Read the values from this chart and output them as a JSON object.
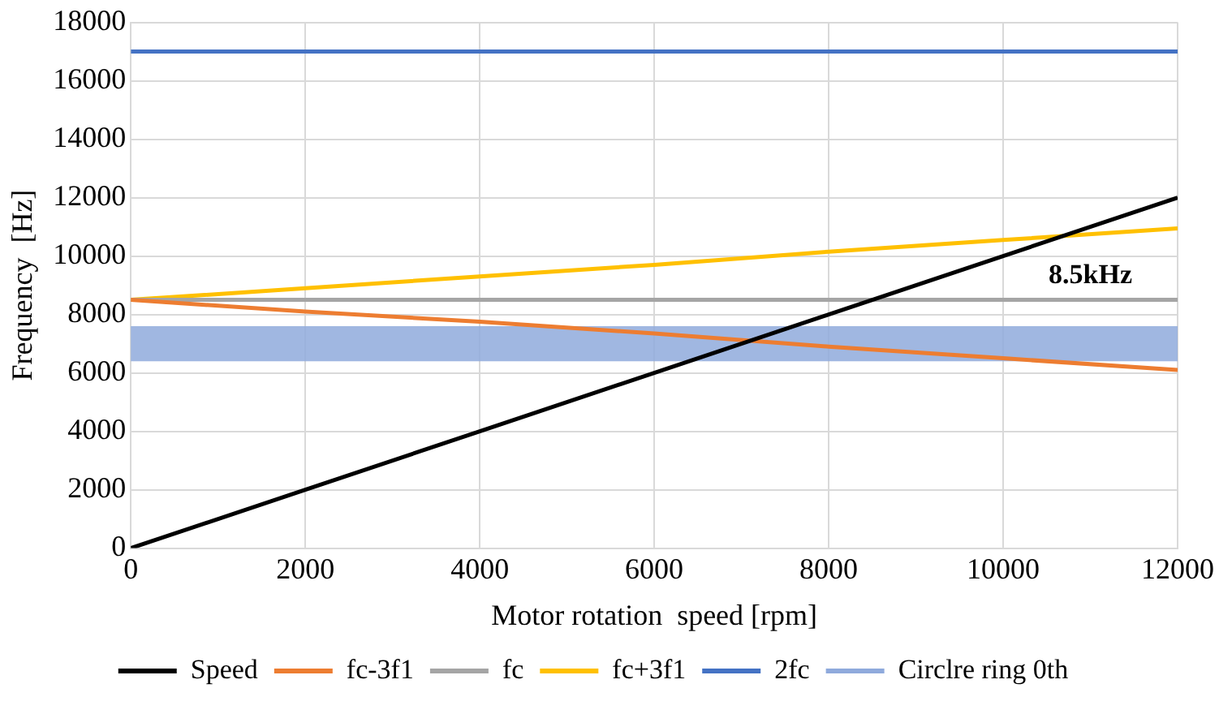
{
  "chart_data": {
    "type": "line",
    "xlabel": "Motor rotation  speed [rpm]",
    "ylabel": "Frequency  [Hz]",
    "x": [
      0,
      2000,
      4000,
      6000,
      8000,
      10000,
      12000
    ],
    "series": [
      {
        "name": "Speed",
        "color": "#000000",
        "values": [
          0,
          2000,
          4000,
          6000,
          8000,
          10000,
          12000
        ]
      },
      {
        "name": "fc-3f1",
        "color": "#ed7d31",
        "values": [
          8500,
          8100,
          7750,
          7350,
          6900,
          6500,
          6100
        ]
      },
      {
        "name": "fc",
        "color": "#a5a5a5",
        "values": [
          8500,
          8500,
          8500,
          8500,
          8500,
          8500,
          8500
        ]
      },
      {
        "name": "fc+3f1",
        "color": "#ffc000",
        "values": [
          8500,
          8900,
          9300,
          9700,
          10150,
          10550,
          10950
        ]
      },
      {
        "name": "2fc",
        "color": "#4472c4",
        "values": [
          17000,
          17000,
          17000,
          17000,
          17000,
          17000,
          17000
        ]
      }
    ],
    "bands": [
      {
        "axis": "y",
        "from": 6400,
        "to": 7600,
        "label": "Circlre ring 0th",
        "color": "#8faadc"
      }
    ],
    "annotations": [
      {
        "text": "8.5kHz",
        "x": 11000,
        "y": 8500
      }
    ],
    "xlim": [
      0,
      12000
    ],
    "xticks": [
      0,
      2000,
      4000,
      6000,
      8000,
      10000,
      12000
    ],
    "ylim": [
      0,
      18000
    ],
    "yticks": [
      0,
      2000,
      4000,
      6000,
      8000,
      10000,
      12000,
      14000,
      16000,
      18000
    ],
    "grid": true,
    "legend": "bottom",
    "marker": "none",
    "line_style": "solid"
  }
}
